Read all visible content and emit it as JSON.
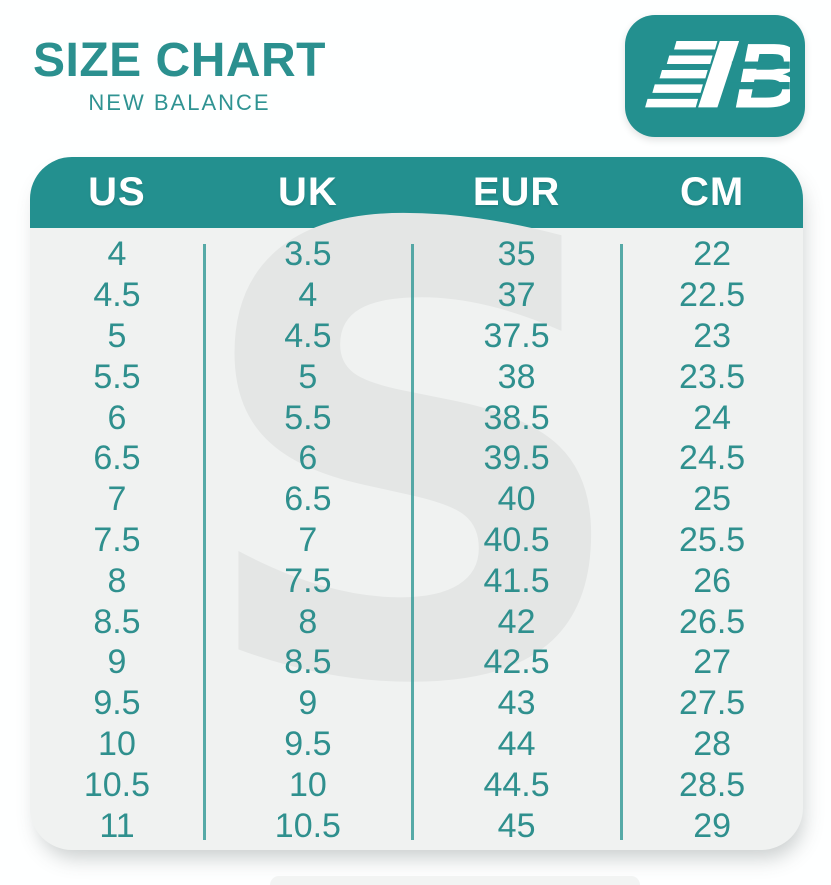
{
  "title": {
    "heading": "SIZE CHART",
    "subtitle": "NEW BALANCE"
  },
  "logo": {
    "brand": "New Balance",
    "monogram": "B"
  },
  "watermark": {
    "glyph": "S"
  },
  "colors": {
    "teal": "#23908f",
    "teal_text": "#2f908e",
    "table_background": "#f0f2f1",
    "watermark_gray": "#e4e6e5",
    "header_text": "#ffffff"
  },
  "chart_data": {
    "type": "table",
    "title": "SIZE CHART — NEW BALANCE",
    "columns": [
      "US",
      "UK",
      "EUR",
      "CM"
    ],
    "rows": [
      [
        "4",
        "3.5",
        "35",
        "22"
      ],
      [
        "4.5",
        "4",
        "37",
        "22.5"
      ],
      [
        "5",
        "4.5",
        "37.5",
        "23"
      ],
      [
        "5.5",
        "5",
        "38",
        "23.5"
      ],
      [
        "6",
        "5.5",
        "38.5",
        "24"
      ],
      [
        "6.5",
        "6",
        "39.5",
        "24.5"
      ],
      [
        "7",
        "6.5",
        "40",
        "25"
      ],
      [
        "7.5",
        "7",
        "40.5",
        "25.5"
      ],
      [
        "8",
        "7.5",
        "41.5",
        "26"
      ],
      [
        "8.5",
        "8",
        "42",
        "26.5"
      ],
      [
        "9",
        "8.5",
        "42.5",
        "27"
      ],
      [
        "9.5",
        "9",
        "43",
        "27.5"
      ],
      [
        "10",
        "9.5",
        "44",
        "28"
      ],
      [
        "10.5",
        "10",
        "44.5",
        "28.5"
      ],
      [
        "11",
        "10.5",
        "45",
        "29"
      ]
    ]
  }
}
